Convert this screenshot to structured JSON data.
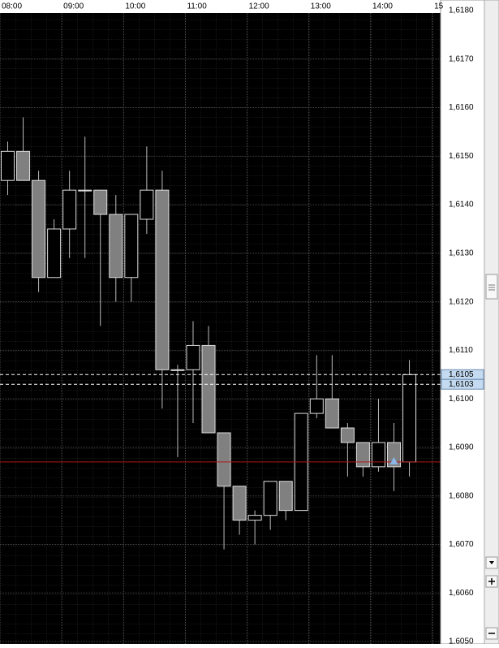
{
  "chart_data": {
    "type": "candlestick",
    "xticks": [
      "08:00",
      "09:00",
      "10:00",
      "11:00",
      "12:00",
      "13:00",
      "14:00",
      "15"
    ],
    "candles": [
      {
        "open": 1.6145,
        "high": 1.6153,
        "low": 1.6142,
        "close": 1.6151
      },
      {
        "open": 1.6151,
        "high": 1.6158,
        "low": 1.6145,
        "close": 1.6145
      },
      {
        "open": 1.6145,
        "high": 1.6147,
        "low": 1.6122,
        "close": 1.6125
      },
      {
        "open": 1.6125,
        "high": 1.6137,
        "low": 1.6125,
        "close": 1.6135
      },
      {
        "open": 1.6135,
        "high": 1.6147,
        "low": 1.6129,
        "close": 1.6143
      },
      {
        "open": 1.6143,
        "high": 1.6154,
        "low": 1.6129,
        "close": 1.6143
      },
      {
        "open": 1.6143,
        "high": 1.6143,
        "low": 1.6115,
        "close": 1.6138
      },
      {
        "open": 1.6138,
        "high": 1.6142,
        "low": 1.612,
        "close": 1.6125
      },
      {
        "open": 1.6125,
        "high": 1.6138,
        "low": 1.612,
        "close": 1.6138
      },
      {
        "open": 1.6137,
        "high": 1.6152,
        "low": 1.6134,
        "close": 1.6143
      },
      {
        "open": 1.6143,
        "high": 1.6147,
        "low": 1.6098,
        "close": 1.6106
      },
      {
        "open": 1.6106,
        "high": 1.6107,
        "low": 1.6088,
        "close": 1.6106
      },
      {
        "open": 1.6106,
        "high": 1.6116,
        "low": 1.6095,
        "close": 1.6111
      },
      {
        "open": 1.6111,
        "high": 1.6115,
        "low": 1.6093,
        "close": 1.6093
      },
      {
        "open": 1.6093,
        "high": 1.6093,
        "low": 1.6069,
        "close": 1.6082
      },
      {
        "open": 1.6082,
        "high": 1.6082,
        "low": 1.6072,
        "close": 1.6075
      },
      {
        "open": 1.6075,
        "high": 1.6077,
        "low": 1.607,
        "close": 1.6076
      },
      {
        "open": 1.6076,
        "high": 1.6083,
        "low": 1.6073,
        "close": 1.6083
      },
      {
        "open": 1.6083,
        "high": 1.6083,
        "low": 1.6075,
        "close": 1.6077
      },
      {
        "open": 1.6077,
        "high": 1.6097,
        "low": 1.6077,
        "close": 1.6097
      },
      {
        "open": 1.6097,
        "high": 1.6109,
        "low": 1.6096,
        "close": 1.61
      },
      {
        "open": 1.61,
        "high": 1.6109,
        "low": 1.6094,
        "close": 1.6094
      },
      {
        "open": 1.6094,
        "high": 1.6095,
        "low": 1.6084,
        "close": 1.6091
      },
      {
        "open": 1.6091,
        "high": 1.6091,
        "low": 1.6084,
        "close": 1.6086
      },
      {
        "open": 1.6086,
        "high": 1.61,
        "low": 1.6085,
        "close": 1.6091
      },
      {
        "open": 1.6091,
        "high": 1.6095,
        "low": 1.6081,
        "close": 1.6086
      },
      {
        "open": 1.6087,
        "high": 1.6108,
        "low": 1.6084,
        "close": 1.6105
      }
    ],
    "levels": [
      {
        "value": 1.6105,
        "label": "1,6105"
      },
      {
        "value": 1.6103,
        "label": "1,6103"
      }
    ],
    "red_line": 1.6087,
    "ylim": [
      1.60495,
      1.61795
    ],
    "yticks": [
      {
        "value": 1.605,
        "label": "1,6050"
      },
      {
        "value": 1.606,
        "label": "1,6060"
      },
      {
        "value": 1.607,
        "label": "1,6070"
      },
      {
        "value": 1.608,
        "label": "1,6080"
      },
      {
        "value": 1.609,
        "label": "1,6090"
      },
      {
        "value": 1.61,
        "label": "1,6100"
      },
      {
        "value": 1.611,
        "label": "1,6110"
      },
      {
        "value": 1.612,
        "label": "1,6120"
      },
      {
        "value": 1.613,
        "label": "1,6130"
      },
      {
        "value": 1.614,
        "label": "1,6140"
      },
      {
        "value": 1.615,
        "label": "1,6150"
      },
      {
        "value": 1.616,
        "label": "1,6160"
      },
      {
        "value": 1.617,
        "label": "1,6170"
      },
      {
        "value": 1.618,
        "label": "1,6180"
      }
    ],
    "grid": true
  }
}
